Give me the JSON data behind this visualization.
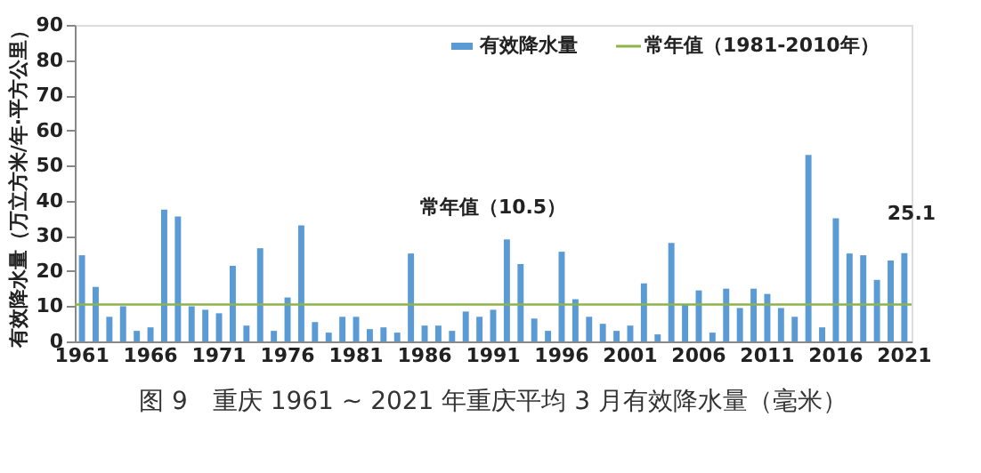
{
  "chart_data": {
    "type": "bar",
    "title": "图 9　重庆 1961 ~ 2021 年重庆平均 3 月有效降水量（毫米）",
    "ylabel": "有效降水量（万立方米/年·平方公里）",
    "categories": [
      "1961",
      null,
      null,
      null,
      null,
      "1966",
      null,
      null,
      null,
      null,
      "1971",
      null,
      null,
      null,
      null,
      "1976",
      null,
      null,
      null,
      null,
      "1981",
      null,
      null,
      null,
      null,
      "1986",
      null,
      null,
      null,
      null,
      "1991",
      null,
      null,
      null,
      null,
      "1996",
      null,
      null,
      null,
      null,
      "2001",
      null,
      null,
      null,
      null,
      "2006",
      null,
      null,
      null,
      null,
      "2011",
      null,
      null,
      null,
      null,
      "2016",
      null,
      null,
      null,
      null,
      "2021"
    ],
    "series": [
      {
        "name": "有效降水量",
        "color": "#5b9bd5",
        "values": [
          24.5,
          15.5,
          7,
          10,
          3,
          4,
          37.5,
          35.5,
          10,
          9,
          8,
          21.5,
          4.5,
          26.5,
          3,
          12.5,
          33,
          5.5,
          2.5,
          7,
          7,
          3.5,
          4,
          2.5,
          25,
          4.5,
          4.5,
          3,
          8.5,
          7,
          9,
          29,
          22,
          6.5,
          3,
          25.5,
          12,
          7,
          5,
          3,
          4.5,
          16.5,
          2,
          28,
          10.5,
          14.5,
          2.5,
          15,
          9.5,
          15,
          13.5,
          9.5,
          7,
          53,
          4,
          35,
          25,
          24.5,
          17.5,
          23,
          25.1
        ],
        "value_labels": [
          null,
          null,
          null,
          null,
          null,
          null,
          null,
          null,
          null,
          null,
          null,
          null,
          null,
          null,
          null,
          null,
          null,
          null,
          null,
          null,
          null,
          null,
          null,
          null,
          null,
          null,
          null,
          null,
          null,
          null,
          null,
          null,
          null,
          null,
          null,
          null,
          null,
          null,
          null,
          null,
          null,
          null,
          null,
          null,
          null,
          null,
          null,
          null,
          null,
          null,
          null,
          null,
          null,
          null,
          null,
          null,
          null,
          null,
          null,
          null,
          "25.1"
        ]
      }
    ],
    "ref_lines": [
      {
        "axis": "y",
        "value": 10.5,
        "label": "常年值（1981-2010年）",
        "color": "#8db34a"
      }
    ],
    "annotations": [
      "常年值（10.5）"
    ],
    "ylim": [
      0,
      90
    ],
    "yticks": [
      0,
      10,
      20,
      30,
      40,
      50,
      60,
      70,
      80,
      90
    ],
    "grid": false,
    "legend": "top right"
  }
}
